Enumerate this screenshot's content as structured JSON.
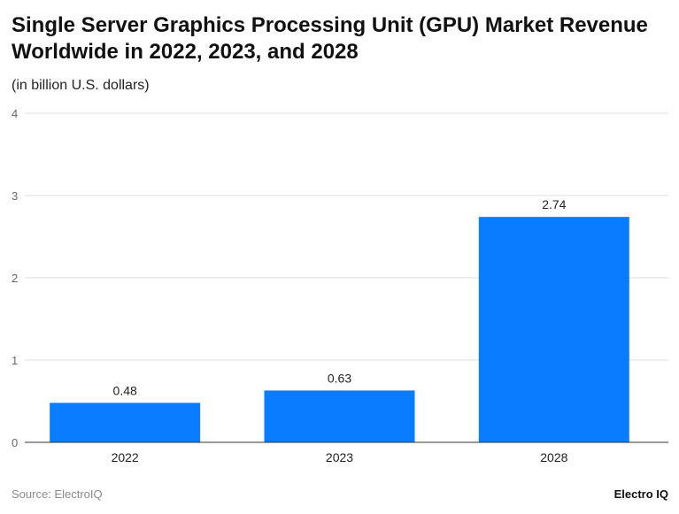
{
  "chart_data": {
    "type": "bar",
    "title": "Single Server Graphics Processing Unit (GPU) Market Revenue Worldwide in 2022, 2023, and 2028",
    "subtitle": "(in billion U.S. dollars)",
    "categories": [
      "2022",
      "2023",
      "2028"
    ],
    "values": [
      0.48,
      0.63,
      2.74
    ],
    "data_labels": [
      "0.48",
      "0.63",
      "2.74"
    ],
    "ylim": [
      0,
      4
    ],
    "yticks": [
      "0",
      "1",
      "2",
      "3",
      "4"
    ],
    "grid": true,
    "bar_color": "#0a7cff"
  },
  "footer": {
    "source": "Source: ElectroIQ",
    "logo": "Electro IQ"
  }
}
